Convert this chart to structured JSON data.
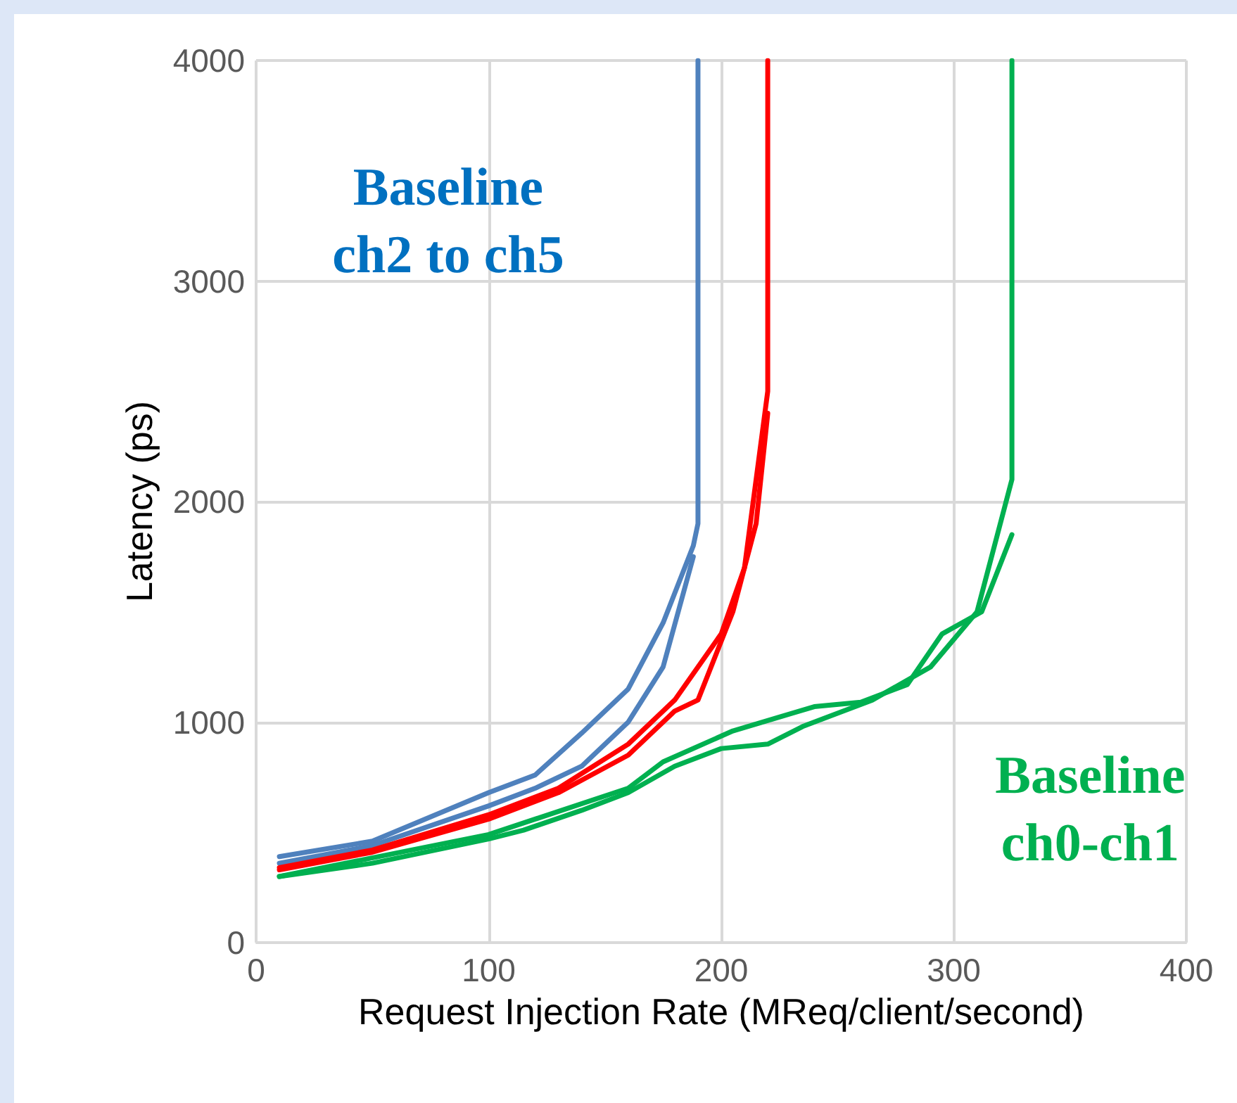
{
  "chart_data": {
    "type": "line",
    "xlabel": "Request Injection Rate (MReq/client/second)",
    "ylabel": "Latency (ps)",
    "xlim": [
      0,
      400
    ],
    "xticks": [
      0,
      100,
      200,
      300,
      400
    ],
    "ylim": [
      0,
      4000
    ],
    "yticks": [
      0,
      1000,
      2000,
      3000,
      4000
    ],
    "grid": true,
    "marker": "none",
    "line_style": "solid",
    "annotations": [
      "Baseline\nch2 to ch5",
      "Baseline\nch0-ch1"
    ],
    "series": [
      {
        "color": "#4f81bd",
        "x": [
          10,
          50,
          100,
          120,
          140,
          160,
          175,
          188,
          190,
          190
        ],
        "values": [
          390,
          460,
          680,
          760,
          950,
          1150,
          1450,
          1800,
          1900,
          4000
        ]
      },
      {
        "color": "#4f81bd",
        "x": [
          10,
          50,
          100,
          120,
          140,
          160,
          175,
          188
        ],
        "values": [
          360,
          440,
          620,
          700,
          800,
          1000,
          1250,
          1750
        ]
      },
      {
        "color": "#ff0000",
        "x": [
          10,
          50,
          100,
          130,
          160,
          180,
          200,
          210,
          220,
          220
        ],
        "values": [
          340,
          420,
          580,
          700,
          900,
          1100,
          1400,
          1700,
          2500,
          4000
        ]
      },
      {
        "color": "#ff0000",
        "x": [
          10,
          50,
          100,
          130,
          160,
          180,
          190,
          205,
          215,
          220
        ],
        "values": [
          330,
          410,
          560,
          680,
          850,
          1050,
          1100,
          1500,
          1900,
          2400
        ]
      },
      {
        "color": "#00b050",
        "x": [
          10,
          50,
          100,
          115,
          140,
          160,
          180,
          200,
          220,
          235,
          265,
          290,
          310,
          325,
          325
        ],
        "values": [
          300,
          360,
          470,
          510,
          600,
          680,
          800,
          880,
          900,
          980,
          1100,
          1250,
          1500,
          2100,
          4000
        ]
      },
      {
        "color": "#00b050",
        "x": [
          10,
          100,
          160,
          175,
          205,
          240,
          260,
          280,
          295,
          312,
          325
        ],
        "values": [
          300,
          490,
          700,
          820,
          960,
          1070,
          1090,
          1170,
          1400,
          1500,
          1850
        ]
      }
    ]
  }
}
